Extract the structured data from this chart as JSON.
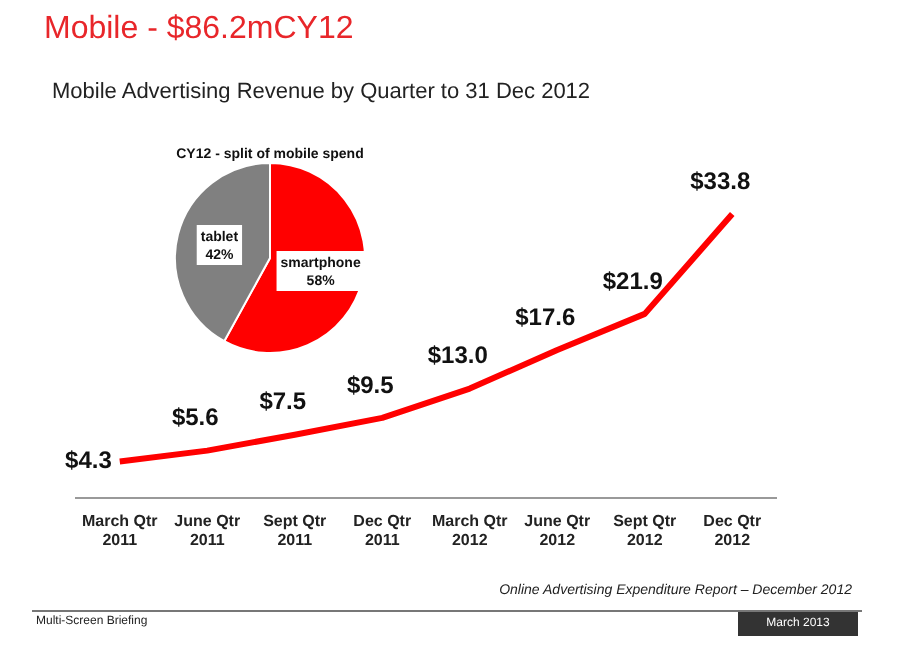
{
  "chart_data": [
    {
      "type": "line",
      "title": "Mobile - $86.2mCY12",
      "subtitle": "Mobile Advertising Revenue by Quarter to 31 Dec 2012",
      "categories": [
        "March Qtr 2011",
        "June Qtr 2011",
        "Sept Qtr 2011",
        "Dec Qtr 2011",
        "March Qtr 2012",
        "June Qtr 2012",
        "Sept Qtr 2012",
        "Dec Qtr 2012"
      ],
      "series": [
        {
          "color": "#ff0000",
          "values": [
            4.3,
            5.6,
            7.5,
            9.5,
            13.0,
            17.6,
            21.9,
            33.8
          ],
          "value_labels": [
            "$4.3",
            "$5.6",
            "$7.5",
            "$9.5",
            "$13.0",
            "$17.6",
            "$21.9",
            "$33.8"
          ]
        }
      ],
      "marker": "none",
      "annotations": [
        "Online Advertising Expenditure Report – December 2012",
        "Multi-Screen Briefing",
        "March 2013"
      ]
    },
    {
      "type": "pie",
      "title": "CY12 - split of mobile spend",
      "categories": [
        "smartphone",
        "tablet"
      ],
      "values": [
        58,
        42
      ],
      "colors": [
        "#ff0000",
        "#808080"
      ],
      "value_labels": [
        "58%",
        "42%"
      ]
    }
  ]
}
